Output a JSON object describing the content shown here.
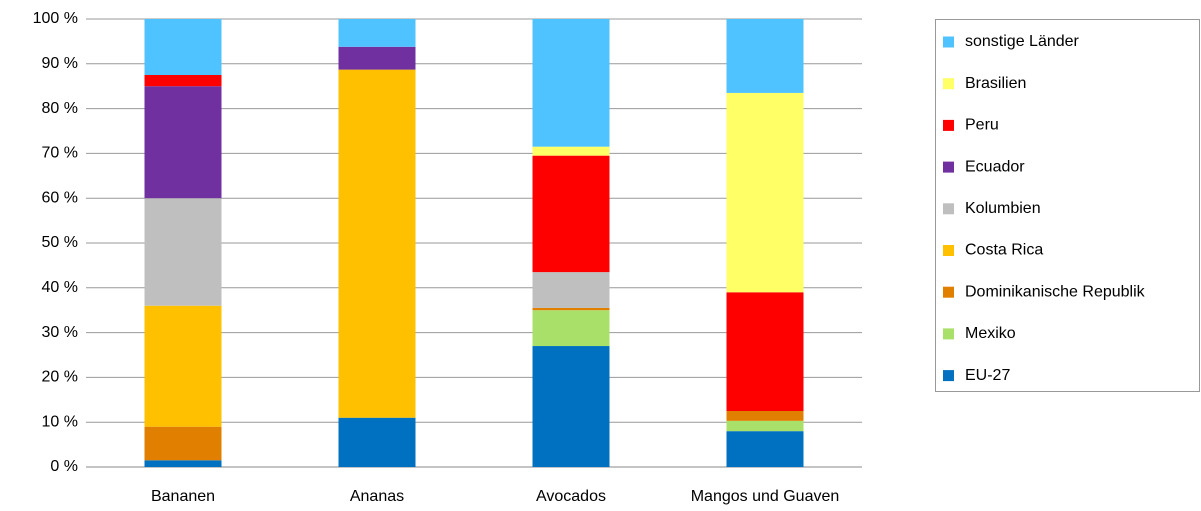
{
  "chart_data": {
    "type": "stacked-bar",
    "categories": [
      "Bananen",
      "Ananas",
      "Avocados",
      "Mangos und Guaven"
    ],
    "series": [
      {
        "name": "EU-27",
        "color": "#0070c0",
        "values": [
          1.5,
          11,
          27,
          8
        ]
      },
      {
        "name": "Mexiko",
        "color": "#a9e06a",
        "values": [
          0,
          0,
          8,
          2.3
        ]
      },
      {
        "name": "Dominikanische Republik",
        "color": "#e07f00",
        "values": [
          7.5,
          0,
          0.5,
          2.2
        ]
      },
      {
        "name": "Costa Rica",
        "color": "#ffc000",
        "values": [
          27,
          77.7,
          0,
          0
        ]
      },
      {
        "name": "Kolumbien",
        "color": "#bfbfbf",
        "values": [
          24,
          0,
          8,
          0
        ]
      },
      {
        "name": "Ecuador",
        "color": "#7030a0",
        "values": [
          25,
          5.1,
          0,
          0
        ]
      },
      {
        "name": "Peru",
        "color": "#ff0000",
        "values": [
          2.5,
          0,
          26,
          26.5
        ]
      },
      {
        "name": "Brasilien",
        "color": "#ffff66",
        "values": [
          0,
          0,
          2,
          44.5
        ]
      },
      {
        "name": "sonstige Länder",
        "color": "#4fc3ff",
        "values": [
          12.5,
          6.2,
          28.5,
          16.5
        ]
      }
    ],
    "ylim": [
      0,
      100
    ],
    "yticks": [
      {
        "value": 0,
        "label": "0 %"
      },
      {
        "value": 10,
        "label": "10 %"
      },
      {
        "value": 20,
        "label": "20 %"
      },
      {
        "value": 30,
        "label": "30 %"
      },
      {
        "value": 40,
        "label": "40 %"
      },
      {
        "value": 50,
        "label": "50 %"
      },
      {
        "value": 60,
        "label": "60 %"
      },
      {
        "value": 70,
        "label": "70 %"
      },
      {
        "value": 80,
        "label": "80 %"
      },
      {
        "value": 90,
        "label": "90 %"
      },
      {
        "value": 100,
        "label": "100 %"
      }
    ],
    "grid": true,
    "legend": "right"
  }
}
